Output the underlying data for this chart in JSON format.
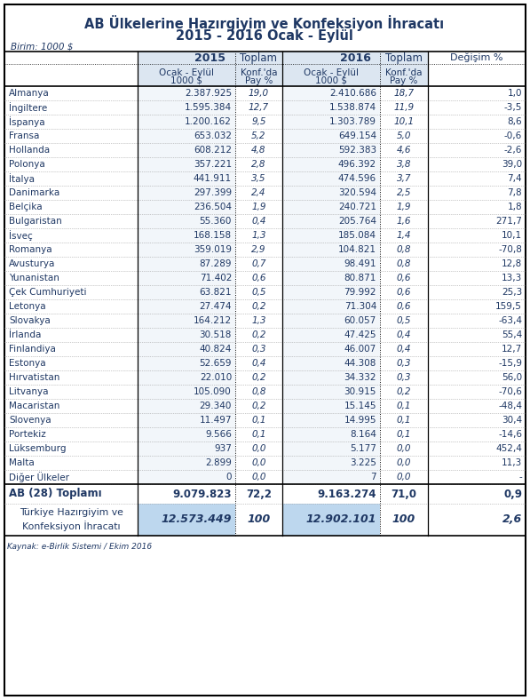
{
  "title1": "AB Ülkelerine Hazırgiyim ve Konfeksiyon İhracatı",
  "title2": "2015 - 2016 Ocak - Eylül",
  "unit": "Birim: 1000 $",
  "source": "Kaynak: e-Birlik Sistemi / Ekim 2016",
  "countries": [
    "Almanya",
    "İngiltere",
    "İspanya",
    "Fransa",
    "Hollanda",
    "Polonya",
    "İtalya",
    "Danimarka",
    "Belçika",
    "Bulgaristan",
    "İsveç",
    "Romanya",
    "Avusturya",
    "Yunanistan",
    "Çek Cumhuriyeti",
    "Letonya",
    "Slovakya",
    "İrlanda",
    "Finlandiya",
    "Estonya",
    "Hırvatistan",
    "Litvanya",
    "Macaristan",
    "Slovenya",
    "Portekiz",
    "Lüksemburg",
    "Malta",
    "Diğer Ülkeler"
  ],
  "val2015": [
    "2.387.925",
    "1.595.384",
    "1.200.162",
    "653.032",
    "608.212",
    "357.221",
    "441.911",
    "297.399",
    "236.504",
    "55.360",
    "168.158",
    "359.019",
    "87.289",
    "71.402",
    "63.821",
    "27.474",
    "164.212",
    "30.518",
    "40.824",
    "52.659",
    "22.010",
    "105.090",
    "29.340",
    "11.497",
    "9.566",
    "937",
    "2.899",
    "0"
  ],
  "share2015": [
    "19,0",
    "12,7",
    "9,5",
    "5,2",
    "4,8",
    "2,8",
    "3,5",
    "2,4",
    "1,9",
    "0,4",
    "1,3",
    "2,9",
    "0,7",
    "0,6",
    "0,5",
    "0,2",
    "1,3",
    "0,2",
    "0,3",
    "0,4",
    "0,2",
    "0,8",
    "0,2",
    "0,1",
    "0,1",
    "0,0",
    "0,0",
    "0,0"
  ],
  "val2016": [
    "2.410.686",
    "1.538.874",
    "1.303.789",
    "649.154",
    "592.383",
    "496.392",
    "474.596",
    "320.594",
    "240.721",
    "205.764",
    "185.084",
    "104.821",
    "98.491",
    "80.871",
    "79.992",
    "71.304",
    "60.057",
    "47.425",
    "46.007",
    "44.308",
    "34.332",
    "30.915",
    "15.145",
    "14.995",
    "8.164",
    "5.177",
    "3.225",
    "7"
  ],
  "share2016": [
    "18,7",
    "11,9",
    "10,1",
    "5,0",
    "4,6",
    "3,8",
    "3,7",
    "2,5",
    "1,9",
    "1,6",
    "1,4",
    "0,8",
    "0,8",
    "0,6",
    "0,6",
    "0,6",
    "0,5",
    "0,4",
    "0,4",
    "0,3",
    "0,3",
    "0,2",
    "0,1",
    "0,1",
    "0,1",
    "0,0",
    "0,0",
    "0,0"
  ],
  "change": [
    "1,0",
    "-3,5",
    "8,6",
    "-0,6",
    "-2,6",
    "39,0",
    "7,4",
    "7,8",
    "1,8",
    "271,7",
    "10,1",
    "-70,8",
    "12,8",
    "13,3",
    "25,3",
    "159,5",
    "-63,4",
    "55,4",
    "12,7",
    "-15,9",
    "56,0",
    "-70,6",
    "-48,4",
    "30,4",
    "-14,6",
    "452,4",
    "11,3",
    "-"
  ],
  "total_label": "AB (28) Toplamı",
  "total_val2015": "9.079.823",
  "total_share2015": "72,2",
  "total_val2016": "9.163.274",
  "total_share2016": "71,0",
  "total_change": "0,9",
  "turkey_label": "Türkiye Hazırgiyim ve\nKonfeksiyon İhracatı",
  "turkey_val2015": "12.573.449",
  "turkey_share2015": "100",
  "turkey_val2016": "12.902.101",
  "turkey_share2016": "100",
  "turkey_change": "2,6",
  "col_bg": "#dce6f1",
  "turkey_val_bg": "#bdd7ee",
  "border_color": "#000000",
  "text_color": "#1f3864",
  "grid_color": "#999999"
}
